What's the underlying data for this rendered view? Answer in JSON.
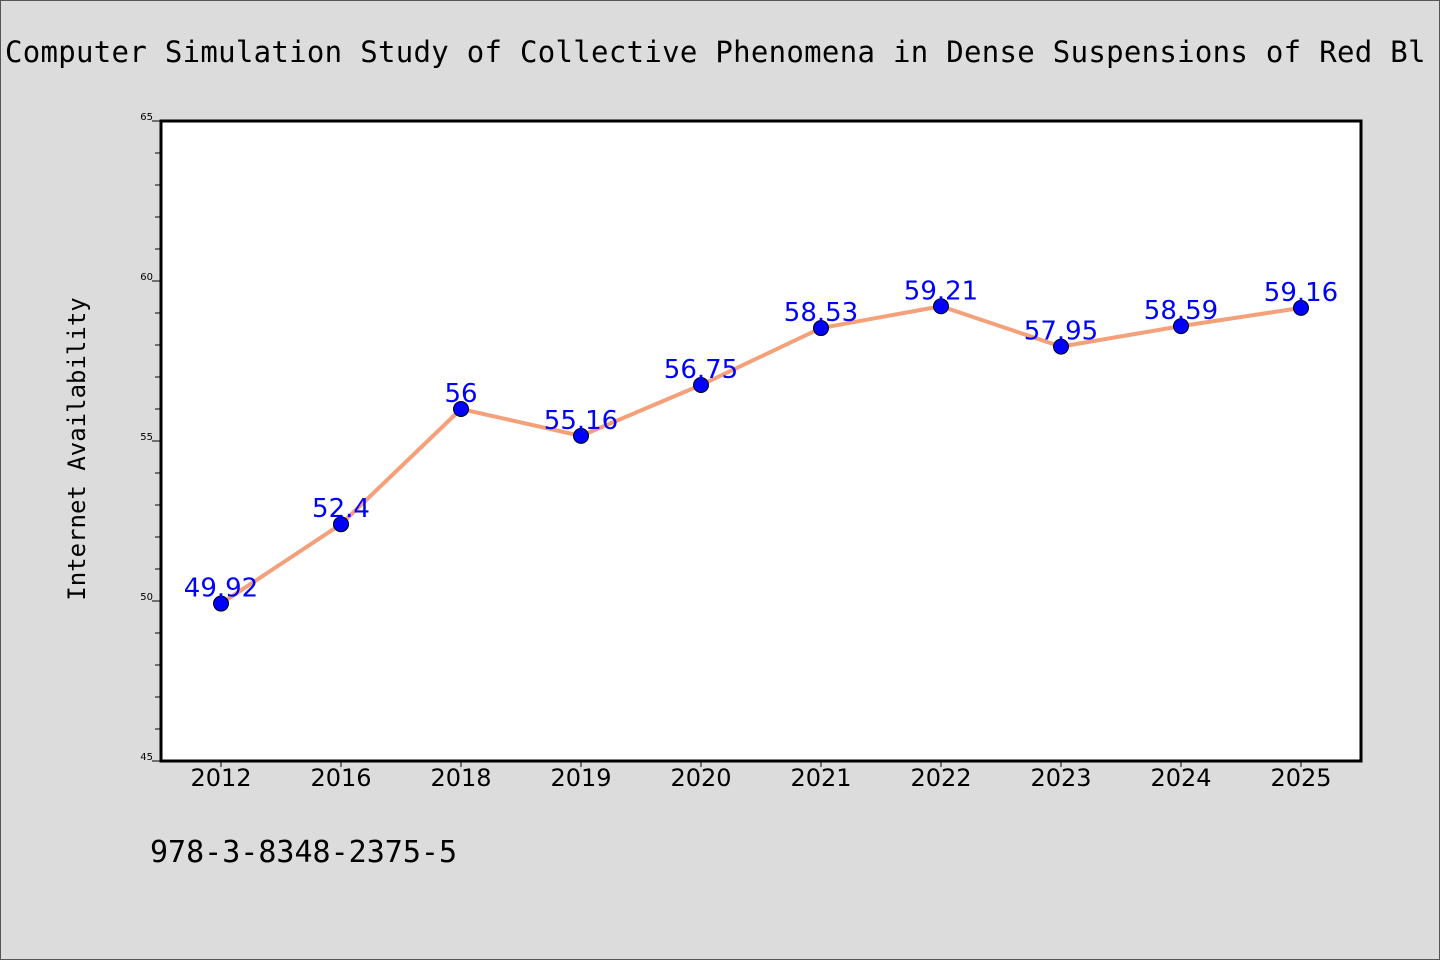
{
  "header": {
    "title": "Computer Simulation Study of Collective Phenomena in Dense Suspensions of Red Bl"
  },
  "footer": {
    "isbn": "978-3-8348-2375-5"
  },
  "colors": {
    "background": "#dcdcdc",
    "plot_background": "#ffffff",
    "line": "#f4a07a",
    "marker": "#0000ff",
    "data_label": "#0000ff"
  },
  "chart_data": {
    "type": "line",
    "title": "Computer Simulation Study of Collective Phenomena in Dense Suspensions of Red Bl",
    "xlabel": "",
    "ylabel": "Internet Availability",
    "categories": [
      "2012",
      "2016",
      "2018",
      "2019",
      "2020",
      "2021",
      "2022",
      "2023",
      "2024",
      "2025"
    ],
    "series": [
      {
        "values": [
          49.92,
          52.4,
          56,
          55.16,
          56.75,
          58.53,
          59.21,
          57.95,
          58.59,
          59.16
        ],
        "labels": [
          "49.92",
          "52.4",
          "56",
          "55.16",
          "56.75",
          "58.53",
          "59.21",
          "57.95",
          "58.59",
          "59.16"
        ]
      }
    ],
    "ylim": [
      45,
      65
    ],
    "y_ticks": [
      "45",
      "50",
      "55",
      "60",
      "65"
    ],
    "grid": false,
    "legend": "none"
  }
}
